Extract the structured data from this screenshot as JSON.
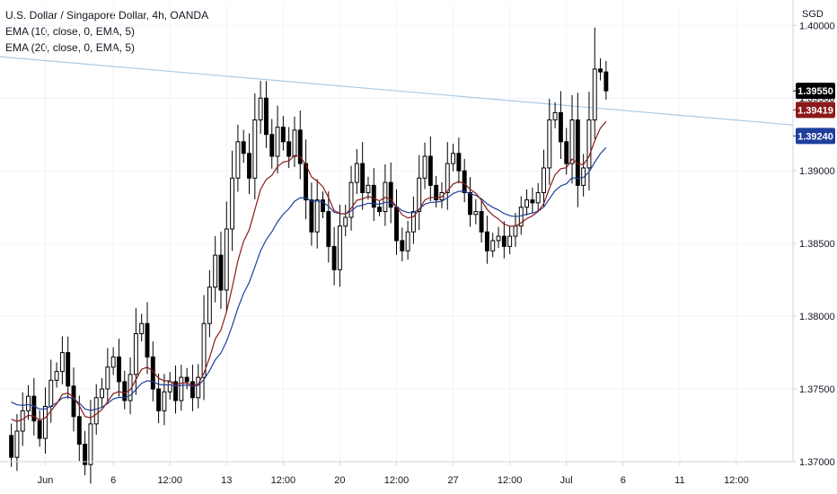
{
  "legend": {
    "title": "U.S. Dollar / Singapore Dollar, 4h, OANDA",
    "ema1": "EMA (10, close, 0, EMA, 5)",
    "ema2": "EMA (20, close, 0, EMA, 5)"
  },
  "currency": "SGD",
  "colors": {
    "up": "#ffffff",
    "down": "#000000",
    "wick": "#000000",
    "ema10": "#8b1a1a",
    "ema20": "#1f3f9b",
    "trendline": "#a9cbe6",
    "grid": "#f0f3fa",
    "axis_line": "#d1d4dc"
  },
  "chart_data": {
    "type": "candlestick",
    "symbol": "USDSGD",
    "timeframe": "4h",
    "ylim": [
      1.37,
      1.4015
    ],
    "xlim": [
      -2,
      138
    ],
    "y_ticks": [
      {
        "value": 1.37,
        "label": "1.37000"
      },
      {
        "value": 1.375,
        "label": "1.37500"
      },
      {
        "value": 1.38,
        "label": "1.38000"
      },
      {
        "value": 1.385,
        "label": "1.38500"
      },
      {
        "value": 1.39,
        "label": "1.39000"
      },
      {
        "value": 1.395,
        "label": "1.39500"
      },
      {
        "value": 1.4,
        "label": "1.40000"
      }
    ],
    "x_ticks": [
      {
        "index": 6,
        "label": "Jun"
      },
      {
        "index": 18,
        "label": "6"
      },
      {
        "index": 28,
        "label": "12:00"
      },
      {
        "index": 38,
        "label": "13"
      },
      {
        "index": 48,
        "label": "12:00"
      },
      {
        "index": 58,
        "label": "20"
      },
      {
        "index": 68,
        "label": "12:00"
      },
      {
        "index": 78,
        "label": "27"
      },
      {
        "index": 88,
        "label": "12:00"
      },
      {
        "index": 98,
        "label": "Jul"
      },
      {
        "index": 108,
        "label": "6"
      },
      {
        "index": 118,
        "label": "11"
      },
      {
        "index": 128,
        "label": "12:00"
      }
    ],
    "closes": [
      1.3703,
      1.3721,
      1.3735,
      1.3745,
      1.3728,
      1.3716,
      1.3738,
      1.3756,
      1.3762,
      1.3775,
      1.3752,
      1.3731,
      1.3712,
      1.3698,
      1.3726,
      1.3744,
      1.375,
      1.3765,
      1.3772,
      1.3755,
      1.3742,
      1.376,
      1.3788,
      1.3795,
      1.3772,
      1.375,
      1.3735,
      1.3748,
      1.3755,
      1.3742,
      1.3758,
      1.3755,
      1.3744,
      1.3758,
      1.3795,
      1.382,
      1.3842,
      1.3818,
      1.386,
      1.3895,
      1.392,
      1.3912,
      1.3895,
      1.3935,
      1.395,
      1.3925,
      1.391,
      1.393,
      1.392,
      1.391,
      1.3928,
      1.3905,
      1.388,
      1.3858,
      1.388,
      1.3872,
      1.3848,
      1.3832,
      1.3862,
      1.3868,
      1.3892,
      1.3905,
      1.3885,
      1.389,
      1.3875,
      1.3872,
      1.3892,
      1.3875,
      1.3852,
      1.3845,
      1.3858,
      1.3872,
      1.3895,
      1.391,
      1.389,
      1.388,
      1.3885,
      1.3905,
      1.3912,
      1.39,
      1.3885,
      1.387,
      1.3872,
      1.3858,
      1.3845,
      1.3852,
      1.3855,
      1.3848,
      1.3855,
      1.3862,
      1.3875,
      1.388,
      1.3878,
      1.3885,
      1.3902,
      1.3935,
      1.394,
      1.392,
      1.3905,
      1.3935,
      1.389,
      1.3902,
      1.3935,
      1.397,
      1.3968,
      1.3955
    ],
    "ema10_last": 1.39419,
    "ema20_last": 1.3924,
    "current_price": {
      "value": 1.3955,
      "label": "1.39550"
    },
    "ema_labels": [
      {
        "value": 1.39419,
        "label": "1.39419"
      },
      {
        "value": 1.3924,
        "label": "1.39240"
      }
    ],
    "trendline": {
      "start": {
        "index": -2,
        "price": 1.39785
      },
      "end": {
        "index": 138,
        "price": 1.39315
      }
    }
  }
}
